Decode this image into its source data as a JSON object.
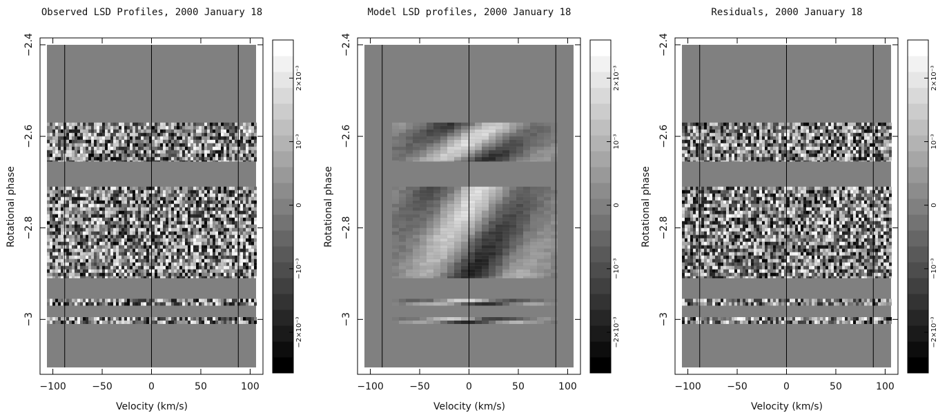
{
  "chart_data": [
    {
      "type": "heatmap",
      "title": "Observed LSD Profiles, 2000 January 18",
      "xlabel": "Velocity (km/s)",
      "ylabel": "Rotational phase",
      "xlim": [
        -113,
        113
      ],
      "ylim": [
        -2.385,
        -3.12
      ],
      "xticks": [
        {
          "value": -100,
          "label": "−100"
        },
        {
          "value": -50,
          "label": "−50"
        },
        0,
        50,
        100
      ],
      "yticks": [
        {
          "value": -2.4,
          "label": "−2.4"
        },
        {
          "value": -2.6,
          "label": "−2.6"
        },
        {
          "value": -2.8,
          "label": "−2.8"
        },
        {
          "value": -3,
          "label": "−3"
        }
      ],
      "reference_lines": [
        -88,
        0,
        88
      ],
      "observed_bands": [
        [
          -2.57,
          -2.655
        ],
        [
          -2.71,
          -2.91
        ],
        [
          -2.955,
          -2.97
        ],
        [
          -2.995,
          -3.01
        ]
      ],
      "texture": "noise",
      "colorbar": {
        "clim": [
          -0.00264,
          0.0026
        ],
        "ticks": [
          {
            "value": -0.002,
            "label": "−2×10⁻³"
          },
          {
            "value": -0.001,
            "label": "−10⁻³"
          },
          0,
          {
            "value": 0.001,
            "label": "10⁻³"
          },
          {
            "value": 0.002,
            "label": "2×10⁻³"
          }
        ]
      }
    },
    {
      "type": "heatmap",
      "title": "Model LSD profiles, 2000 January 18",
      "xlabel": "Velocity (km/s)",
      "ylabel": "Rotational phase",
      "xlim": [
        -113,
        113
      ],
      "ylim": [
        -2.385,
        -3.12
      ],
      "xticks": [
        {
          "value": -100,
          "label": "−100"
        },
        {
          "value": -50,
          "label": "−50"
        },
        0,
        50,
        100
      ],
      "yticks": [
        {
          "value": -2.4,
          "label": "−2.4"
        },
        {
          "value": -2.6,
          "label": "−2.6"
        },
        {
          "value": -2.8,
          "label": "−2.8"
        },
        {
          "value": -3,
          "label": "−3"
        }
      ],
      "reference_lines": [
        -88,
        0,
        88
      ],
      "observed_bands": [
        [
          -2.57,
          -2.655
        ],
        [
          -2.71,
          -2.91
        ],
        [
          -2.955,
          -2.97
        ],
        [
          -2.995,
          -3.01
        ]
      ],
      "texture": "smooth",
      "colorbar": {
        "clim": [
          -0.00264,
          0.0026
        ],
        "ticks": [
          {
            "value": -0.002,
            "label": "−2×10⁻³"
          },
          {
            "value": -0.001,
            "label": "−10⁻³"
          },
          0,
          {
            "value": 0.001,
            "label": "10⁻³"
          },
          {
            "value": 0.002,
            "label": "2×10⁻³"
          }
        ]
      }
    },
    {
      "type": "heatmap",
      "title": "Residuals, 2000 January 18",
      "xlabel": "Velocity (km/s)",
      "ylabel": "Rotational phase",
      "xlim": [
        -113,
        113
      ],
      "ylim": [
        -2.385,
        -3.12
      ],
      "xticks": [
        {
          "value": -100,
          "label": "−100"
        },
        {
          "value": -50,
          "label": "−50"
        },
        0,
        50,
        100
      ],
      "yticks": [
        {
          "value": -2.4,
          "label": "−2.4"
        },
        {
          "value": -2.6,
          "label": "−2.6"
        },
        {
          "value": -2.8,
          "label": "−2.8"
        },
        {
          "value": -3,
          "label": "−3"
        }
      ],
      "reference_lines": [
        -88,
        0,
        88
      ],
      "observed_bands": [
        [
          -2.57,
          -2.655
        ],
        [
          -2.71,
          -2.91
        ],
        [
          -2.955,
          -2.97
        ],
        [
          -2.995,
          -3.01
        ]
      ],
      "texture": "noise",
      "colorbar": {
        "clim": [
          -0.00264,
          0.0026
        ],
        "ticks": [
          {
            "value": -0.002,
            "label": "−2×10⁻³"
          },
          {
            "value": -0.001,
            "label": "−10⁻³"
          },
          0,
          {
            "value": 0.001,
            "label": "10⁻³"
          },
          {
            "value": 0.002,
            "label": "2×10⁻³"
          }
        ]
      }
    }
  ]
}
